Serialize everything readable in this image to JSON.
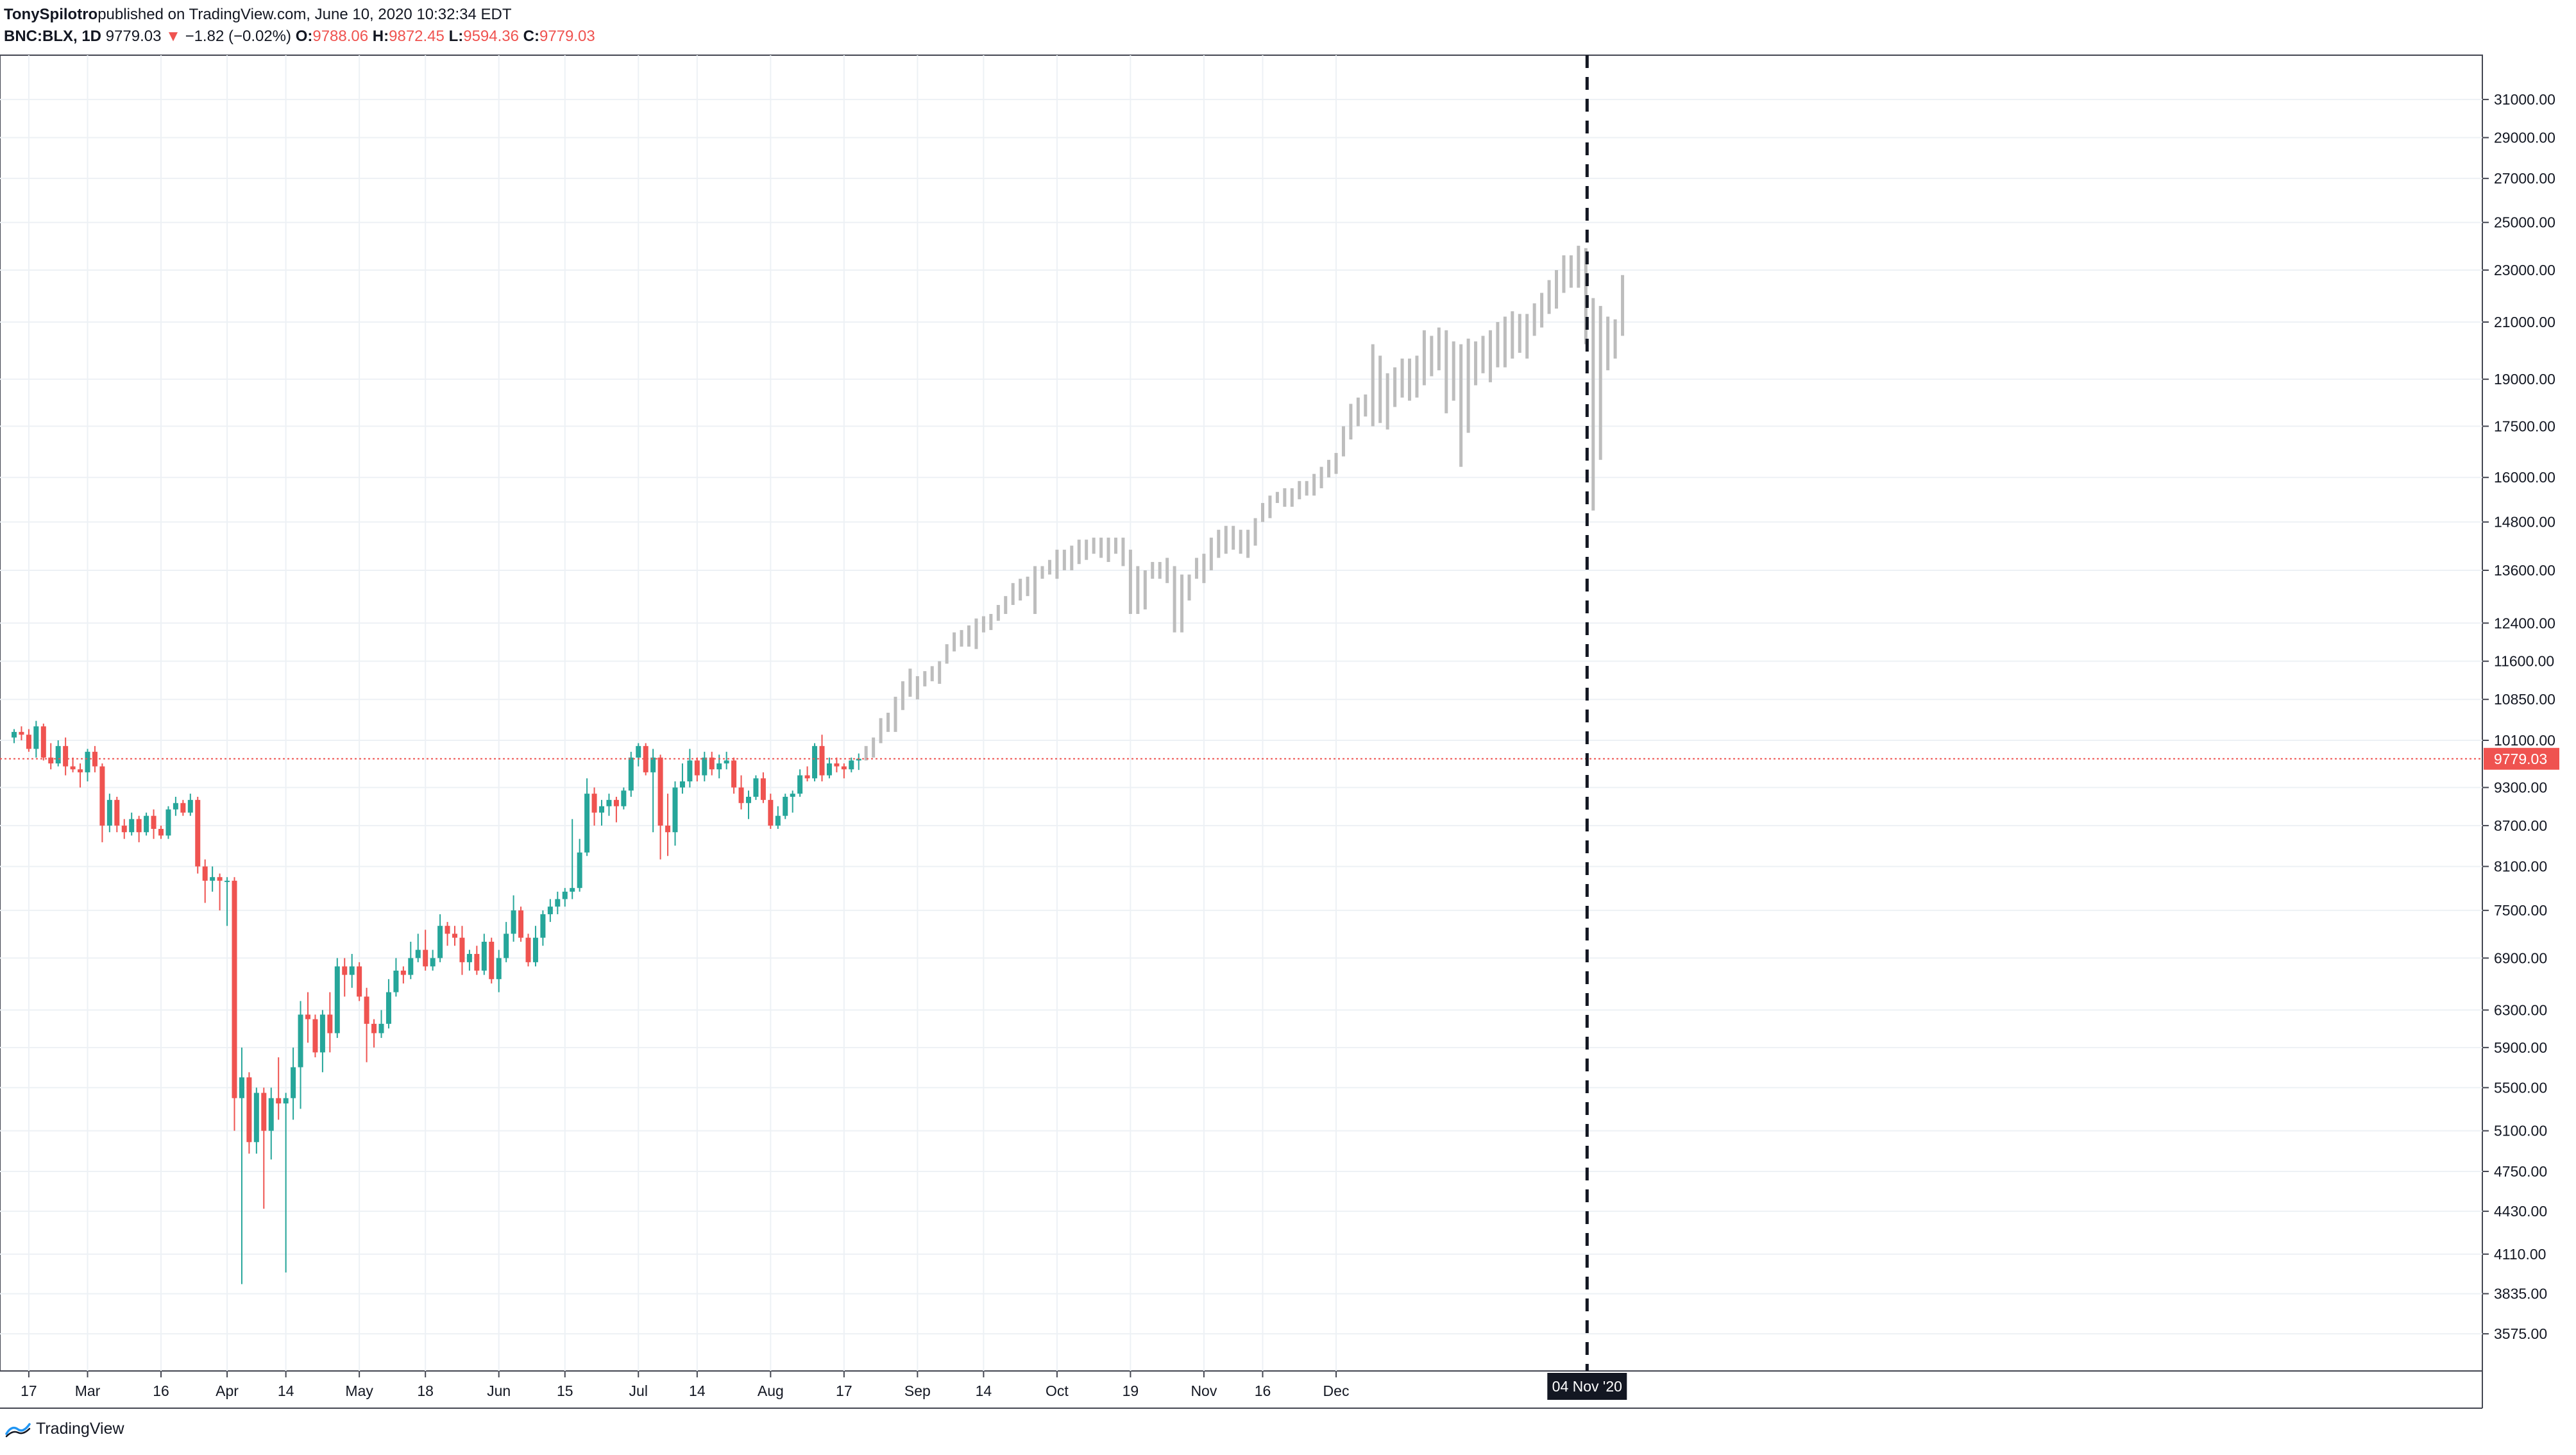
{
  "header": {
    "author": "TonySpilotro",
    "published_text": " published on TradingView.com, June 10, 2020 10:32:34 EDT",
    "symbol": "BNC:BLX, 1D",
    "last": "9779.03",
    "change": "−1.82 (−0.02%)",
    "o_label": "O:",
    "o_value": "9788.06",
    "h_label": "H:",
    "h_value": "9872.45",
    "l_label": "L:",
    "l_value": "9594.36",
    "c_label": "C:",
    "c_value": "9779.03"
  },
  "footer": {
    "brand": "TradingView"
  },
  "colors": {
    "up": "#26a69a",
    "down": "#ef5350",
    "projection": "#bdbdbd",
    "grid": "#edf1f5",
    "price_line": "#ef5350",
    "axis_text": "#131722"
  },
  "chart_data": {
    "type": "candlestick",
    "scale": "log",
    "last_price_label": "9779.03",
    "marker_label": "04 Nov '20",
    "y_ticks": [
      "31000.00",
      "29000.00",
      "27000.00",
      "25000.00",
      "23000.00",
      "21000.00",
      "19000.00",
      "17500.00",
      "16000.00",
      "14800.00",
      "13600.00",
      "12400.00",
      "11600.00",
      "10850.00",
      "10100.00",
      "9300.00",
      "8700.00",
      "8100.00",
      "7500.00",
      "6900.00",
      "6300.00",
      "5900.00",
      "5500.00",
      "5100.00",
      "4750.00",
      "4430.00",
      "4110.00",
      "3835.00",
      "3575.00"
    ],
    "x_ticks": [
      "17",
      "Mar",
      "16",
      "Apr",
      "14",
      "May",
      "18",
      "Jun",
      "15",
      "Jul",
      "14",
      "Aug",
      "17",
      "Sep",
      "14",
      "Oct",
      "19",
      "Nov",
      "16",
      "Dec"
    ],
    "ylim": [
      3350,
      33500
    ],
    "series": [
      {
        "name": "actual",
        "ohlc": [
          [
            10150,
            10300,
            10050,
            10250
          ],
          [
            10250,
            10350,
            10100,
            10200
          ],
          [
            10200,
            10300,
            9900,
            9950
          ],
          [
            9950,
            10450,
            9800,
            10350
          ],
          [
            10350,
            10400,
            9750,
            9800
          ],
          [
            9800,
            10050,
            9600,
            9700
          ],
          [
            9700,
            10100,
            9650,
            10000
          ],
          [
            10000,
            10150,
            9500,
            9650
          ],
          [
            9650,
            9800,
            9550,
            9600
          ],
          [
            9600,
            9700,
            9300,
            9550
          ],
          [
            9550,
            9950,
            9400,
            9900
          ],
          [
            9900,
            10000,
            9550,
            9650
          ],
          [
            9650,
            9700,
            8450,
            8700
          ],
          [
            8700,
            9200,
            8600,
            9100
          ],
          [
            9100,
            9150,
            8600,
            8700
          ],
          [
            8700,
            8800,
            8500,
            8600
          ],
          [
            8600,
            8900,
            8550,
            8800
          ],
          [
            8800,
            8850,
            8450,
            8600
          ],
          [
            8600,
            8900,
            8550,
            8850
          ],
          [
            8850,
            8950,
            8500,
            8650
          ],
          [
            8650,
            8700,
            8500,
            8550
          ],
          [
            8550,
            9000,
            8500,
            8950
          ],
          [
            8950,
            9150,
            8850,
            9050
          ],
          [
            9050,
            9100,
            8850,
            8900
          ],
          [
            8900,
            9200,
            8850,
            9100
          ],
          [
            9100,
            9150,
            8000,
            8100
          ],
          [
            8100,
            8200,
            7600,
            7900
          ],
          [
            7900,
            8100,
            7750,
            7950
          ],
          [
            7950,
            8000,
            7500,
            7900
          ],
          [
            7900,
            7950,
            7300,
            7900
          ],
          [
            7900,
            7950,
            5100,
            5400
          ],
          [
            5400,
            5900,
            3900,
            5600
          ],
          [
            5600,
            5650,
            4900,
            5000
          ],
          [
            5000,
            5500,
            4900,
            5450
          ],
          [
            5450,
            5500,
            4450,
            5100
          ],
          [
            5100,
            5500,
            4850,
            5400
          ],
          [
            5400,
            5800,
            5200,
            5350
          ],
          [
            5350,
            5450,
            3980,
            5400
          ],
          [
            5400,
            5900,
            5200,
            5700
          ],
          [
            5700,
            6400,
            5300,
            6250
          ],
          [
            6250,
            6500,
            5950,
            6200
          ],
          [
            6200,
            6250,
            5800,
            5850
          ],
          [
            5850,
            6300,
            5650,
            6250
          ],
          [
            6250,
            6500,
            5850,
            6050
          ],
          [
            6050,
            6900,
            6000,
            6800
          ],
          [
            6800,
            6900,
            6450,
            6700
          ],
          [
            6700,
            6950,
            6550,
            6800
          ],
          [
            6800,
            6850,
            6400,
            6450
          ],
          [
            6450,
            6550,
            5750,
            6150
          ],
          [
            6150,
            6200,
            5900,
            6050
          ],
          [
            6050,
            6300,
            6000,
            6150
          ],
          [
            6150,
            6650,
            6100,
            6500
          ],
          [
            6500,
            6900,
            6450,
            6750
          ],
          [
            6750,
            6800,
            6600,
            6700
          ],
          [
            6700,
            7100,
            6650,
            6900
          ],
          [
            6900,
            7200,
            6850,
            7000
          ],
          [
            7000,
            7250,
            6750,
            6800
          ],
          [
            6800,
            7000,
            6750,
            6900
          ],
          [
            6900,
            7450,
            6850,
            7300
          ],
          [
            7300,
            7350,
            7050,
            7200
          ],
          [
            7200,
            7300,
            7050,
            7150
          ],
          [
            7150,
            7300,
            6700,
            6850
          ],
          [
            6850,
            7000,
            6750,
            6950
          ],
          [
            6950,
            7050,
            6700,
            6750
          ],
          [
            6750,
            7200,
            6700,
            7100
          ],
          [
            7100,
            7150,
            6600,
            6650
          ],
          [
            6650,
            7000,
            6500,
            6900
          ],
          [
            6900,
            7350,
            6850,
            7200
          ],
          [
            7200,
            7700,
            7100,
            7500
          ],
          [
            7500,
            7550,
            7100,
            7150
          ],
          [
            7150,
            7200,
            6800,
            6850
          ],
          [
            6850,
            7300,
            6800,
            7150
          ],
          [
            7150,
            7500,
            7050,
            7450
          ],
          [
            7450,
            7650,
            7350,
            7550
          ],
          [
            7550,
            7750,
            7450,
            7650
          ],
          [
            7650,
            7800,
            7550,
            7750
          ],
          [
            7750,
            8800,
            7650,
            7800
          ],
          [
            7800,
            8500,
            7750,
            8300
          ],
          [
            8300,
            9450,
            8250,
            9200
          ],
          [
            9200,
            9300,
            8700,
            8900
          ],
          [
            8900,
            9100,
            8700,
            9000
          ],
          [
            9000,
            9200,
            8850,
            9100
          ],
          [
            9100,
            9150,
            8750,
            9000
          ],
          [
            9000,
            9300,
            8950,
            9250
          ],
          [
            9250,
            9900,
            9150,
            9800
          ],
          [
            9800,
            10050,
            9650,
            10000
          ],
          [
            10000,
            10050,
            9500,
            9550
          ],
          [
            9550,
            9950,
            8600,
            9800
          ],
          [
            9800,
            9850,
            8200,
            8700
          ],
          [
            8700,
            9200,
            8250,
            8600
          ],
          [
            8600,
            9400,
            8400,
            9300
          ],
          [
            9300,
            9700,
            9200,
            9400
          ],
          [
            9400,
            9950,
            9300,
            9750
          ],
          [
            9750,
            9800,
            9400,
            9500
          ],
          [
            9500,
            9900,
            9400,
            9800
          ],
          [
            9800,
            9900,
            9500,
            9600
          ],
          [
            9600,
            9850,
            9450,
            9700
          ],
          [
            9700,
            9900,
            9600,
            9750
          ],
          [
            9750,
            9800,
            9200,
            9300
          ],
          [
            9300,
            9500,
            8950,
            9050
          ],
          [
            9050,
            9250,
            8800,
            9150
          ],
          [
            9150,
            9500,
            9100,
            9450
          ],
          [
            9450,
            9550,
            9050,
            9100
          ],
          [
            9100,
            9200,
            8650,
            8700
          ],
          [
            8700,
            9000,
            8650,
            8850
          ],
          [
            8850,
            9200,
            8800,
            9150
          ],
          [
            9150,
            9250,
            8900,
            9200
          ],
          [
            9200,
            9600,
            9150,
            9500
          ],
          [
            9500,
            9650,
            9400,
            9450
          ],
          [
            9450,
            10050,
            9400,
            10000
          ],
          [
            10000,
            10200,
            9400,
            9500
          ],
          [
            9500,
            9800,
            9450,
            9700
          ],
          [
            9700,
            9800,
            9550,
            9650
          ],
          [
            9650,
            9700,
            9450,
            9600
          ],
          [
            9600,
            9800,
            9550,
            9750
          ],
          [
            9750,
            9870,
            9590,
            9780
          ]
        ]
      },
      {
        "name": "projection",
        "hl": [
          [
            9750,
            10000
          ],
          [
            9800,
            10150
          ],
          [
            10050,
            10500
          ],
          [
            10250,
            10600
          ],
          [
            10250,
            10900
          ],
          [
            10650,
            11200
          ],
          [
            10900,
            11450
          ],
          [
            10850,
            11300
          ],
          [
            11100,
            11400
          ],
          [
            11200,
            11500
          ],
          [
            11150,
            11600
          ],
          [
            11550,
            11950
          ],
          [
            11800,
            12200
          ],
          [
            11900,
            12250
          ],
          [
            11900,
            12350
          ],
          [
            11850,
            12500
          ],
          [
            12200,
            12550
          ],
          [
            12250,
            12600
          ],
          [
            12450,
            12800
          ],
          [
            12600,
            13000
          ],
          [
            12800,
            13300
          ],
          [
            12900,
            13400
          ],
          [
            13000,
            13450
          ],
          [
            12600,
            13700
          ],
          [
            13400,
            13700
          ],
          [
            13500,
            13850
          ],
          [
            13400,
            14100
          ],
          [
            13600,
            14100
          ],
          [
            13600,
            14200
          ],
          [
            13750,
            14350
          ],
          [
            13850,
            14350
          ],
          [
            14000,
            14400
          ],
          [
            13900,
            14400
          ],
          [
            13800,
            14400
          ],
          [
            14000,
            14400
          ],
          [
            13700,
            14400
          ],
          [
            12600,
            14100
          ],
          [
            12600,
            13700
          ],
          [
            12700,
            13600
          ],
          [
            13400,
            13800
          ],
          [
            13400,
            13800
          ],
          [
            13300,
            13900
          ],
          [
            12200,
            13700
          ],
          [
            12200,
            13500
          ],
          [
            12900,
            13500
          ],
          [
            13400,
            13900
          ],
          [
            13300,
            14000
          ],
          [
            13600,
            14400
          ],
          [
            13900,
            14600
          ],
          [
            14000,
            14700
          ],
          [
            14100,
            14700
          ],
          [
            14000,
            14600
          ],
          [
            13900,
            14600
          ],
          [
            14200,
            14900
          ],
          [
            14800,
            15300
          ],
          [
            14900,
            15500
          ],
          [
            15300,
            15600
          ],
          [
            15200,
            15700
          ],
          [
            15200,
            15700
          ],
          [
            15400,
            15900
          ],
          [
            15500,
            15900
          ],
          [
            15500,
            16100
          ],
          [
            15700,
            16300
          ],
          [
            16000,
            16500
          ],
          [
            16100,
            16700
          ],
          [
            16600,
            17500
          ],
          [
            17100,
            18200
          ],
          [
            17500,
            18400
          ],
          [
            17800,
            18500
          ],
          [
            17500,
            20200
          ],
          [
            17600,
            19800
          ],
          [
            17400,
            19200
          ],
          [
            18100,
            19400
          ],
          [
            18400,
            19700
          ],
          [
            18300,
            19700
          ],
          [
            18400,
            19800
          ],
          [
            18800,
            20700
          ],
          [
            19100,
            20500
          ],
          [
            19300,
            20800
          ],
          [
            17900,
            20700
          ],
          [
            18300,
            20300
          ],
          [
            16300,
            20200
          ],
          [
            17300,
            20400
          ],
          [
            18800,
            20300
          ],
          [
            19200,
            20500
          ],
          [
            18900,
            20700
          ],
          [
            19400,
            21000
          ],
          [
            19400,
            21200
          ],
          [
            19700,
            21400
          ],
          [
            19900,
            21300
          ],
          [
            19700,
            21300
          ],
          [
            20500,
            21700
          ],
          [
            20800,
            22100
          ],
          [
            21300,
            22600
          ],
          [
            21500,
            23000
          ],
          [
            22100,
            23600
          ],
          [
            22300,
            23600
          ],
          [
            22300,
            24000
          ],
          [
            20200,
            23900
          ],
          [
            15100,
            21900
          ],
          [
            16500,
            21600
          ],
          [
            19300,
            21200
          ],
          [
            19700,
            21100
          ],
          [
            20500,
            22800
          ]
        ]
      }
    ]
  }
}
